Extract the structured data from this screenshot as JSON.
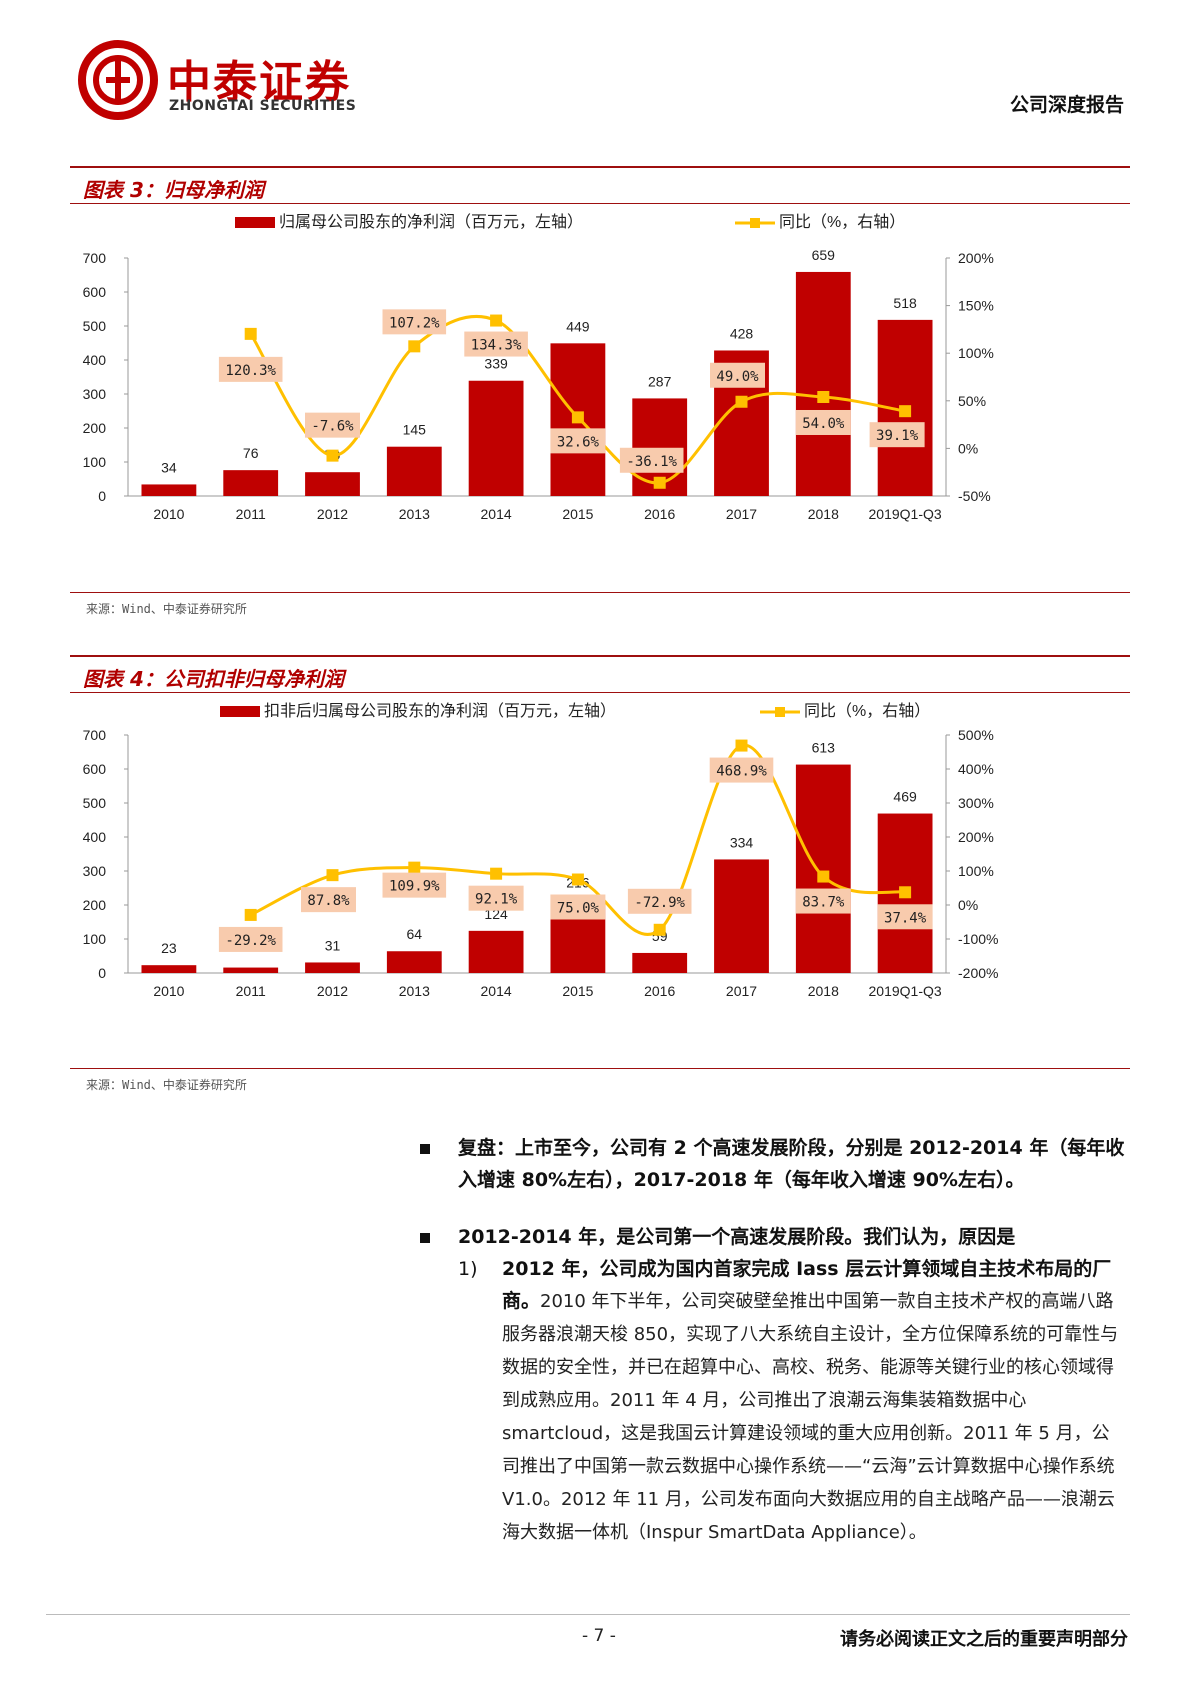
{
  "header": {
    "logo_cn": "中泰证券",
    "logo_en": "ZHONGTAI SECURITIES",
    "report_type": "公司深度报告"
  },
  "figure3": {
    "title": "图表 3：归母净利润",
    "source": "来源：Wind、中泰证券研究所"
  },
  "figure4": {
    "title": "图表 4：公司扣非归母净利润",
    "source": "来源：Wind、中泰证券研究所"
  },
  "chart_data": [
    {
      "type": "bar",
      "categories": [
        "2010",
        "2011",
        "2012",
        "2013",
        "2014",
        "2015",
        "2016",
        "2017",
        "2018",
        "2019Q1-Q3"
      ],
      "series": [
        {
          "name": "归属母公司股东的净利润（百万元，左轴）",
          "values": [
            34,
            76,
            70,
            145,
            339,
            449,
            287,
            428,
            659,
            518
          ],
          "axis": "left",
          "type": "bar",
          "color": "#c00000"
        },
        {
          "name": "同比（%，右轴）",
          "values": [
            null,
            120.3,
            -7.6,
            107.2,
            134.3,
            32.6,
            -36.1,
            49.0,
            54.0,
            39.1
          ],
          "labels": [
            "",
            "120.3%",
            "-7.6%",
            "107.2%",
            "134.3%",
            "32.6%",
            "-36.1%",
            "49.0%",
            "54.0%",
            "39.1%"
          ],
          "axis": "right",
          "type": "line",
          "color": "#ffc000"
        }
      ],
      "ylim": [
        0,
        700
      ],
      "y_ticks": [
        "700",
        "600",
        "500",
        "400",
        "300",
        "200",
        "100",
        "0"
      ],
      "y2lim": [
        -50,
        200
      ],
      "y2_ticks": [
        "200%",
        "150%",
        "100%",
        "50%",
        "0%",
        "-50%"
      ],
      "legend_position": "top"
    },
    {
      "type": "bar",
      "categories": [
        "2010",
        "2011",
        "2012",
        "2013",
        "2014",
        "2015",
        "2016",
        "2017",
        "2018",
        "2019Q1-Q3"
      ],
      "series": [
        {
          "name": "扣非后归属母公司股东的净利润（百万元，左轴）",
          "values": [
            23,
            16,
            31,
            64,
            124,
            216,
            59,
            334,
            613,
            469
          ],
          "value_labels": [
            "23",
            "",
            "31",
            "64",
            "124",
            "216",
            "59",
            "334",
            "613",
            "469"
          ],
          "axis": "left",
          "type": "bar",
          "color": "#c00000"
        },
        {
          "name": "同比（%，右轴）",
          "values": [
            null,
            -29.2,
            87.8,
            109.9,
            92.1,
            75.0,
            -72.9,
            468.9,
            83.7,
            37.4
          ],
          "labels": [
            "",
            "-29.2%",
            "87.8%",
            "109.9%",
            "92.1%",
            "75.0%",
            "-72.9%",
            "468.9%",
            "83.7%",
            "37.4%"
          ],
          "axis": "right",
          "type": "line",
          "color": "#ffc000"
        }
      ],
      "ylim": [
        0,
        700
      ],
      "y_ticks": [
        "700",
        "600",
        "500",
        "400",
        "300",
        "200",
        "100",
        "0"
      ],
      "y2lim": [
        -200,
        500
      ],
      "y2_ticks": [
        "500%",
        "400%",
        "300%",
        "200%",
        "100%",
        "0%",
        "-100%",
        "-200%"
      ],
      "legend_position": "top"
    }
  ],
  "text": {
    "p1_bold": "复盘：上市至今，公司有 2 个高速发展阶段，分别是 2012-2014 年（每年收入增速 80%左右），2017-2018 年（每年收入增速 90%左右）。",
    "p2_bold": "2012-2014 年，是公司第一个高速发展阶段。我们认为，原因是",
    "item1_num": "1)",
    "item1_bold": "2012 年，公司成为国内首家完成 Iass 层云计算领域自主技术布局的厂商。",
    "item1_body": "2010 年下半年，公司突破壁垒推出中国第一款自主技术产权的高端八路服务器浪潮天梭 850，实现了八大系统自主设计，全方位保障系统的可靠性与数据的安全性，并已在超算中心、高校、税务、能源等关键行业的核心领域得到成熟应用。2011 年 4 月，公司推出了浪潮云海集装箱数据中心 smartcloud，这是我国云计算建设领域的重大应用创新。2011 年 5 月，公司推出了中国第一款云数据中心操作系统——“云海”云计算数据中心操作系统 V1.0。2012 年 11 月，公司发布面向大数据应用的自主战略产品——浪潮云海大数据一体机（Inspur SmartData Appliance）。"
  },
  "footer": {
    "page": "- 7 -",
    "note": "请务必阅读正文之后的重要声明部分"
  }
}
